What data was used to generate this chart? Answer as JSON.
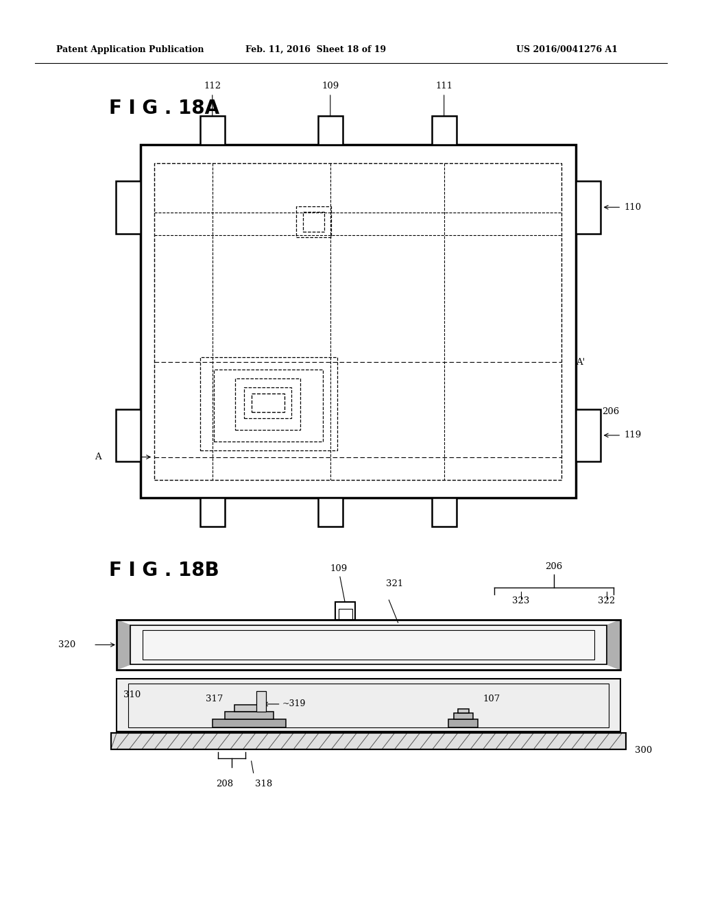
{
  "bg_color": "#ffffff",
  "header_left": "Patent Application Publication",
  "header_mid": "Feb. 11, 2016  Sheet 18 of 19",
  "header_right": "US 2016/0041276 A1",
  "fig18a_title": "F I G . 18A",
  "fig18b_title": "F I G . 18B"
}
